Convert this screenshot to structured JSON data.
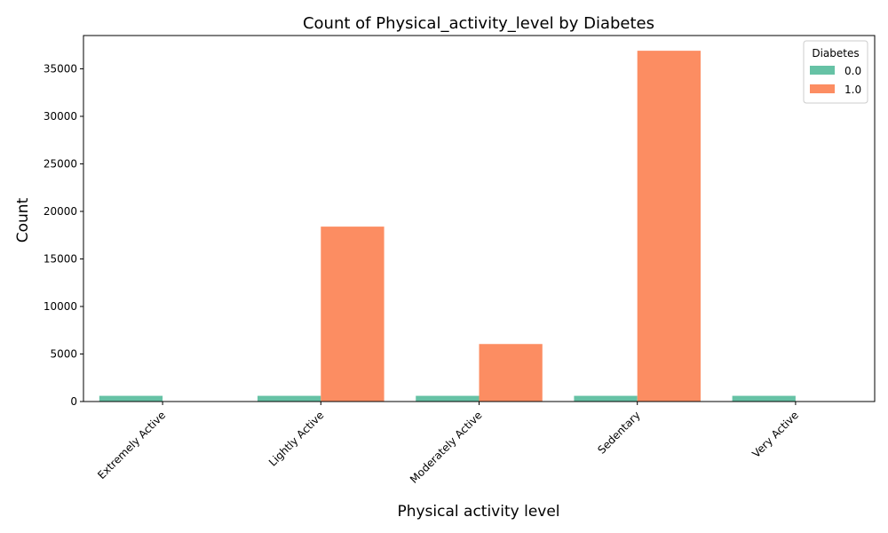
{
  "chart_data": {
    "type": "bar",
    "title": "Count of Physical_activity_level by Diabetes",
    "xlabel": "Physical activity level",
    "ylabel": "Count",
    "categories": [
      "Extremely Active",
      "Lightly Active",
      "Moderately Active",
      "Sedentary",
      "Very Active"
    ],
    "series": [
      {
        "name": "0.0",
        "color": "#66c2a5",
        "values": [
          600,
          600,
          600,
          600,
          600
        ]
      },
      {
        "name": "1.0",
        "color": "#fc8d62",
        "values": [
          0,
          18400,
          6050,
          36900,
          0
        ]
      }
    ],
    "ylim": [
      0,
      38500
    ],
    "yticks": [
      0,
      5000,
      10000,
      15000,
      20000,
      25000,
      30000,
      35000
    ],
    "legend": {
      "title": "Diabetes",
      "placement": "top-right"
    },
    "grid": false
  }
}
